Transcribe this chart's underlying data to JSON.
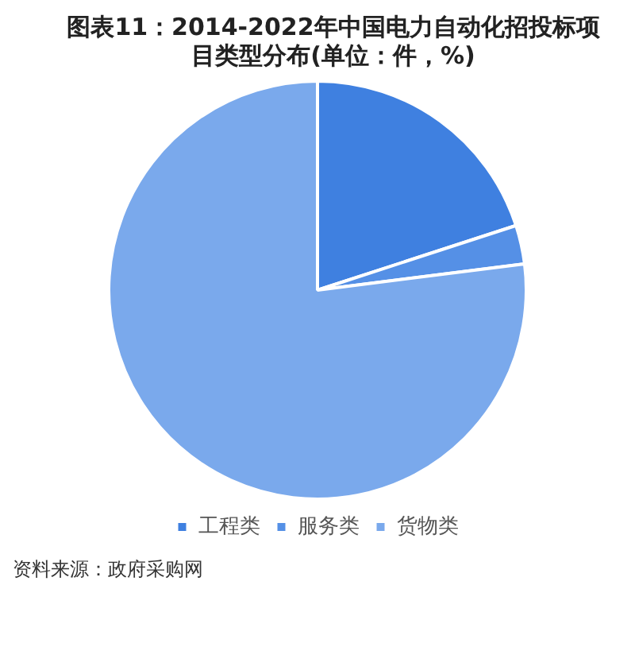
{
  "chart_data": {
    "type": "pie",
    "title": "图表11：2014-2022年中国电力自动化招投标项目类型分布(单位：件，%)",
    "categories": [
      "工程类",
      "服务类",
      "货物类"
    ],
    "values": [
      20,
      3,
      77
    ],
    "colors": [
      "#3f80e0",
      "#5590e6",
      "#7aa9ec"
    ],
    "legend": "bottom",
    "annotations": [
      "资料来源：政府采购网"
    ]
  }
}
